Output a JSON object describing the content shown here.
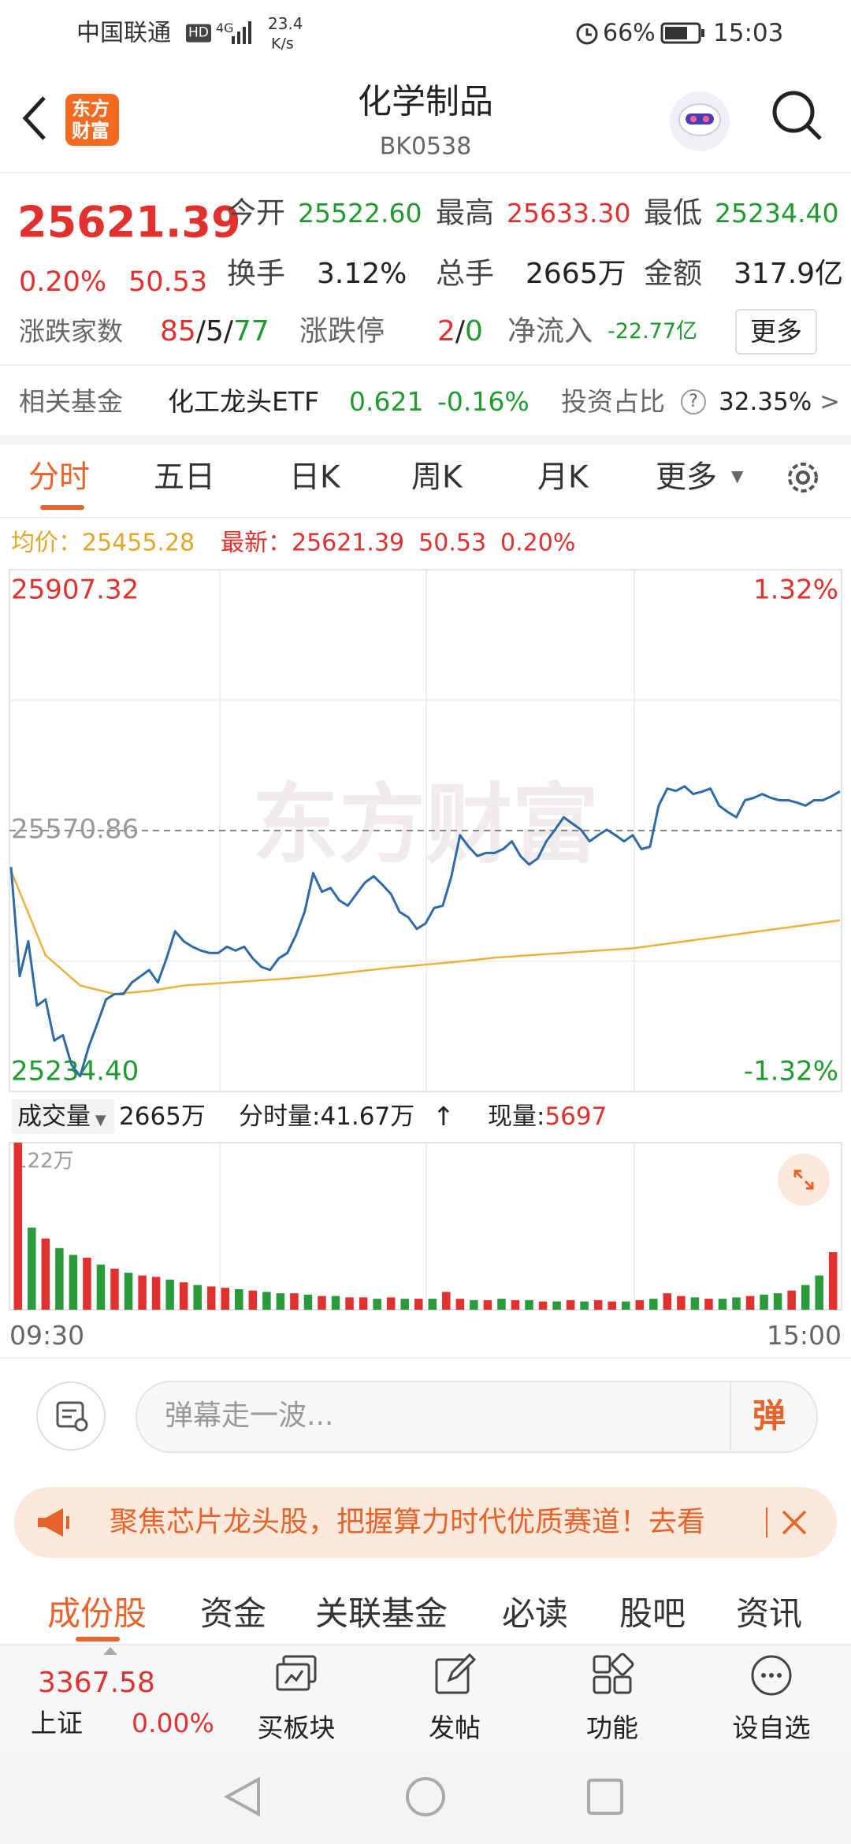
{
  "status_bar": {
    "carrier": "中国联通",
    "hd": "HD",
    "network": "4G",
    "speed": "23.4",
    "speed_unit": "K/s",
    "battery": "66%",
    "time": "15:03"
  },
  "header": {
    "logo": [
      "东方",
      "财富"
    ],
    "title": "化学制品",
    "code": "BK0538"
  },
  "quote": {
    "price": "25621.39",
    "change_pct": "0.20%",
    "change": "50.53",
    "stats": [
      [
        "今开",
        "25522.60"
      ],
      [
        "最高",
        "25633.30"
      ],
      [
        "最低",
        "25234.40"
      ],
      [
        "换手",
        "3.12%"
      ],
      [
        "总手",
        "2665万"
      ],
      [
        "金额",
        "317.9亿"
      ]
    ],
    "breadth": {
      "label": "涨跌家数",
      "up": "85",
      "flat": "5",
      "down": "77",
      "sep": "/"
    },
    "limit": {
      "label": "涨跌停",
      "up": "2",
      "down": "0",
      "sep": "/"
    },
    "inflow": {
      "label": "净流入",
      "value": "-22.77亿"
    },
    "more": "更多"
  },
  "fund": {
    "label": "相关基金",
    "name": "化工龙头ETF",
    "price": "0.621",
    "change": "-0.16%",
    "ratio_label": "投资占比",
    "help": "?",
    "ratio": "32.35%",
    "arrow": ">"
  },
  "tabs": {
    "items": [
      "分时",
      "五日",
      "日K",
      "周K",
      "月K",
      "更多"
    ],
    "active": 0
  },
  "chart_data": [
    {
      "type": "line",
      "info": {
        "avg_label": "均价：",
        "avg": "25455.28",
        "last_label": "最新：",
        "last": "25621.39",
        "change": "50.53",
        "change_pct": "0.20%"
      },
      "watermark": "东方财富",
      "ylim": [
        25234.4,
        25907.32
      ],
      "yticks": [
        25907.32,
        25570.86,
        {
          "value": 25234.4,
          "label": "25234.40"
        }
      ],
      "y2lim": [
        -1.32,
        1.32
      ],
      "y2ticks": [
        {
          "value": 1.32,
          "label": "1.32%"
        },
        {
          "value": -1.32,
          "label": "-1.32%"
        }
      ],
      "series": [
        {
          "color": "#2f6aa8",
          "values": [
            25524,
            25383,
            25428,
            25345,
            25353,
            25300,
            25307,
            25269,
            25254,
            25292,
            25322,
            25353,
            25360,
            25360,
            25375,
            25383,
            25391,
            25375,
            25406,
            25441,
            25428,
            25421,
            25416,
            25413,
            25413,
            25421,
            25416,
            25421,
            25406,
            25395,
            25391,
            25406,
            25413,
            25436,
            25466,
            25516,
            25492,
            25497,
            25481,
            25474,
            25489,
            25504,
            25512,
            25501,
            25489,
            25466,
            25459,
            25444,
            25451,
            25471,
            25474,
            25512,
            25565,
            25550,
            25538,
            25542,
            25542,
            25547,
            25557,
            25538,
            25527,
            25535,
            25557,
            25572,
            25588,
            25580,
            25572,
            25557,
            25565,
            25572,
            25565,
            25557,
            25565,
            25547,
            25550,
            25603,
            25625,
            25622,
            25628,
            25618,
            25621,
            25625,
            25603,
            25595,
            25588,
            25610,
            25613,
            25618,
            25613,
            25610,
            25610,
            25607,
            25603,
            25610,
            25610,
            25615,
            25621.39
          ]
        },
        {
          "color": "#eab23a",
          "values": [
            25519,
            25410,
            25371,
            25360,
            25364,
            25371,
            25374,
            25377,
            25380,
            25384,
            25389,
            25394,
            25398,
            25402,
            25407,
            25410,
            25413,
            25416,
            25419,
            25425,
            25431,
            25437,
            25443,
            25449,
            25455.28
          ]
        }
      ]
    },
    {
      "type": "bar",
      "header": {
        "selector": "成交量",
        "total": "2665万",
        "interval": "分时量:41.67万",
        "arrow": "↑",
        "current_label": "现量:",
        "current": "5697"
      },
      "ylim": [
        0,
        122
      ],
      "yticks": [
        {
          "value": 122,
          "label": "122万"
        }
      ],
      "values": [
        122,
        60,
        52,
        45,
        40,
        38,
        33,
        30,
        27,
        25,
        24,
        22,
        20,
        18,
        17,
        16,
        15,
        14,
        13,
        12,
        12,
        11,
        10,
        10,
        9,
        9,
        8,
        9,
        8,
        8,
        8,
        13,
        8,
        7,
        7,
        8,
        7,
        7,
        6,
        6,
        7,
        6,
        7,
        6,
        6,
        7,
        8,
        12,
        10,
        9,
        8,
        8,
        9,
        10,
        11,
        12,
        14,
        18,
        25,
        42
      ],
      "colors": [
        "#e0312f",
        "#2a9a3b",
        "#e0312f",
        "#2a9a3b",
        "#2a9a3b",
        "#e0312f",
        "#2a9a3b",
        "#e0312f",
        "#2a9a3b",
        "#e0312f",
        "#e0312f",
        "#2a9a3b",
        "#e0312f",
        "#2a9a3b",
        "#e0312f",
        "#e0312f",
        "#2a9a3b",
        "#e0312f",
        "#2a9a3b",
        "#2a9a3b",
        "#e0312f",
        "#2a9a3b",
        "#e0312f",
        "#2a9a3b",
        "#e0312f",
        "#e0312f",
        "#2a9a3b",
        "#e0312f",
        "#2a9a3b",
        "#e0312f",
        "#2a9a3b",
        "#e0312f",
        "#e0312f",
        "#2a9a3b",
        "#e0312f",
        "#2a9a3b",
        "#e0312f",
        "#2a9a3b",
        "#e0312f",
        "#2a9a3b",
        "#e0312f",
        "#2a9a3b",
        "#e0312f",
        "#e0312f",
        "#2a9a3b",
        "#e0312f",
        "#2a9a3b",
        "#e0312f",
        "#e0312f",
        "#2a9a3b",
        "#e0312f",
        "#2a9a3b",
        "#2a9a3b",
        "#e0312f",
        "#2a9a3b",
        "#2a9a3b",
        "#e0312f",
        "#2a9a3b",
        "#2a9a3b",
        "#e0312f"
      ],
      "x_labels": [
        "09:30",
        "15:00"
      ]
    }
  ],
  "comment": {
    "placeholder": "弹幕走一波...",
    "send": "弹"
  },
  "banner": {
    "text": "聚焦芯片龙头股，把握算力时代优质赛道！去看"
  },
  "bottom_tabs": {
    "items": [
      "成份股",
      "资金",
      "关联基金",
      "必读",
      "股吧",
      "资讯"
    ],
    "active": 0
  },
  "bottom_bar": {
    "index": {
      "price": "3367.58",
      "name": "上证",
      "change": "0.00%"
    },
    "actions": [
      "买板块",
      "发帖",
      "功能",
      "设自选"
    ]
  }
}
